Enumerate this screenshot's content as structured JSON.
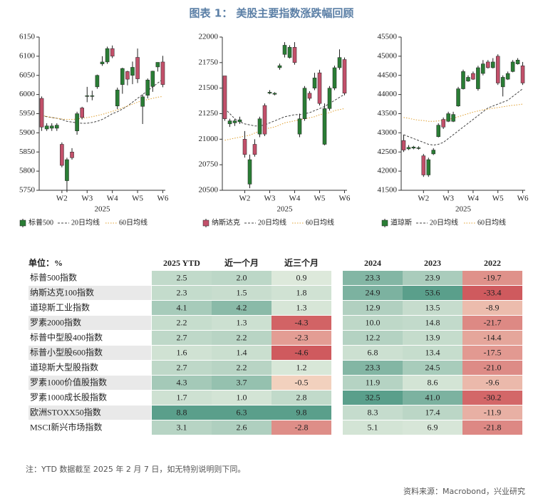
{
  "title": "图表 1： 美股主要指数涨跌幅回顾",
  "chart_data": [
    {
      "type": "candlestick",
      "xlabel": "2025",
      "categories": [
        null,
        null,
        null,
        null,
        "W2",
        null,
        null,
        null,
        null,
        "W3",
        null,
        null,
        null,
        null,
        "W4",
        null,
        null,
        null,
        null,
        "W5",
        null,
        null,
        null,
        null,
        "W6"
      ],
      "ylim": [
        5750,
        6150
      ],
      "yticks": [
        5750,
        5800,
        5850,
        5900,
        5950,
        6000,
        6050,
        6100,
        6150
      ],
      "candles": {
        "name": "标普500",
        "up_color": "#2a7d35",
        "down_color": "#c2506a",
        "legend_color": "#2a7d35",
        "open": [
          5990,
          5910,
          5912,
          5912,
          5870,
          5775,
          5850,
          5905,
          5965,
          5995,
          5995,
          6020,
          6080,
          6085,
          6120,
          5970,
          6026,
          6060,
          6050,
          6097,
          5969,
          5998,
          6021,
          6072,
          6085
        ],
        "close": [
          5915,
          5918,
          5918,
          5920,
          5815,
          5830,
          5835,
          5950,
          5940,
          5997,
          5997,
          6050,
          6085,
          6120,
          6100,
          6012,
          6068,
          6040,
          6071,
          6041,
          5994,
          6038,
          6061,
          6084,
          6026
        ],
        "high": [
          5995,
          5925,
          5925,
          5925,
          5875,
          5835,
          5860,
          5955,
          5968,
          6020,
          6010,
          6052,
          6100,
          6125,
          6128,
          6018,
          6070,
          6062,
          6086,
          6120,
          6000,
          6042,
          6062,
          6084,
          6101
        ],
        "low": [
          5905,
          5905,
          5905,
          5905,
          5810,
          5745,
          5830,
          5895,
          5935,
          5980,
          5985,
          6015,
          6075,
          6080,
          6095,
          5962,
          6002,
          6024,
          6027,
          6030,
          5923,
          5990,
          6007,
          6060,
          6019
        ]
      },
      "lines": [
        {
          "name": "20日均线",
          "color": "#444444",
          "style": "dashed",
          "values": [
            5945,
            5942,
            5940,
            5938,
            5935,
            5930,
            5928,
            5926,
            5925,
            5925,
            5927,
            5930,
            5935,
            5942,
            5950,
            5955,
            5962,
            5970,
            5980,
            5990,
            6000,
            6010,
            6020,
            6030,
            6040
          ]
        },
        {
          "name": "60日均线",
          "color": "#e0a030",
          "style": "dotted",
          "values": [
            5945,
            5943,
            5940,
            5938,
            5936,
            5935,
            5935,
            5936,
            5938,
            5940,
            5942,
            5945,
            5948,
            5952,
            5956,
            5960,
            5965,
            5970,
            5975,
            5980,
            5984,
            5987,
            5990,
            5993,
            5995
          ]
        }
      ]
    },
    {
      "type": "candlestick",
      "xlabel": "2025",
      "categories": [
        null,
        null,
        null,
        null,
        "W2",
        null,
        null,
        null,
        null,
        "W3",
        null,
        null,
        null,
        null,
        "W4",
        null,
        null,
        null,
        null,
        "W5",
        null,
        null,
        null,
        null,
        "W6"
      ],
      "ylim": [
        20500,
        22000
      ],
      "yticks": [
        20500,
        20750,
        21000,
        21250,
        21500,
        21750,
        22000
      ],
      "candles": {
        "name": "纳斯达克",
        "up_color": "#2a7d35",
        "down_color": "#c2506a",
        "legend_color": "#c2506a",
        "open": [
          21620,
          21150,
          21160,
          21170,
          21000,
          20560,
          20950,
          21050,
          21330,
          21450,
          21440,
          21700,
          21830,
          21800,
          21900,
          21050,
          21200,
          21450,
          21500,
          21650,
          20950,
          21300,
          21500,
          21700,
          21780
        ],
        "close": [
          21200,
          21180,
          21180,
          21190,
          20850,
          20800,
          20850,
          21200,
          21050,
          21460,
          21450,
          21720,
          21920,
          21900,
          21750,
          21200,
          21500,
          21400,
          21600,
          21350,
          21300,
          21500,
          21700,
          21800,
          21450
        ],
        "high": [
          21620,
          21200,
          21200,
          21220,
          21080,
          20850,
          21000,
          21220,
          21350,
          21480,
          21460,
          21740,
          21950,
          21920,
          21950,
          21250,
          21520,
          21470,
          21650,
          21680,
          21350,
          21520,
          21720,
          21880,
          21800
        ],
        "low": [
          21180,
          21120,
          21130,
          21150,
          20820,
          20520,
          20830,
          21020,
          21030,
          21440,
          21430,
          21680,
          21800,
          21790,
          21730,
          21020,
          21180,
          21380,
          21480,
          21330,
          20940,
          21280,
          21480,
          21680,
          21430
        ]
      },
      "lines": [
        {
          "name": "20日均线",
          "color": "#444444",
          "style": "dashed",
          "values": [
            21300,
            21250,
            21200,
            21170,
            21150,
            21140,
            21130,
            21130,
            21140,
            21160,
            21180,
            21200,
            21220,
            21230,
            21240,
            21240,
            21250,
            21260,
            21280,
            21300,
            21320,
            21350,
            21380,
            21410,
            21440
          ]
        },
        {
          "name": "60日均线",
          "color": "#e0a030",
          "style": "dotted",
          "values": [
            20990,
            21000,
            21010,
            21020,
            21030,
            21040,
            21060,
            21080,
            21100,
            21110,
            21120,
            21140,
            21160,
            21170,
            21180,
            21190,
            21200,
            21210,
            21220,
            21240,
            21250,
            21260,
            21280,
            21290,
            21300
          ]
        }
      ]
    },
    {
      "type": "candlestick",
      "xlabel": "2025",
      "categories": [
        null,
        null,
        null,
        null,
        "W2",
        null,
        null,
        null,
        null,
        "W3",
        null,
        null,
        null,
        null,
        "W4",
        null,
        null,
        null,
        null,
        "W5",
        null,
        null,
        null,
        null,
        "W6"
      ],
      "ylim": [
        41500,
        45500
      ],
      "yticks": [
        41500,
        42000,
        42500,
        43000,
        43500,
        44000,
        44500,
        45000,
        45500
      ],
      "candles": {
        "name": "道琼斯",
        "up_color": "#2a7d35",
        "down_color": "#c2506a",
        "legend_color": "#2a7d35",
        "open": [
          42800,
          42580,
          42600,
          42590,
          42400,
          41900,
          42450,
          42900,
          43350,
          43300,
          43300,
          43700,
          44150,
          44350,
          44550,
          44150,
          44550,
          44850,
          44700,
          45000,
          44200,
          44400,
          44600,
          44800,
          44750
        ],
        "close": [
          42550,
          42620,
          42630,
          42610,
          41900,
          42300,
          42550,
          43200,
          43150,
          43500,
          43480,
          44150,
          44600,
          44450,
          44400,
          44700,
          44800,
          44700,
          44850,
          44300,
          44450,
          44550,
          44850,
          44900,
          44300
        ],
        "high": [
          42950,
          42680,
          42660,
          42650,
          42450,
          42350,
          42600,
          43250,
          43400,
          43550,
          43550,
          44200,
          44650,
          44500,
          44600,
          44750,
          44900,
          44900,
          44950,
          45050,
          44500,
          44600,
          44900,
          44950,
          44850
        ],
        "low": [
          42500,
          42550,
          42570,
          42560,
          41850,
          41850,
          42420,
          42880,
          43100,
          43280,
          43280,
          43680,
          44130,
          44330,
          44380,
          44100,
          44500,
          44680,
          44680,
          44250,
          43950,
          44380,
          44580,
          44780,
          44250
        ]
      },
      "lines": [
        {
          "name": "20日均线",
          "color": "#444444",
          "style": "dashed",
          "values": [
            42950,
            42900,
            42850,
            42800,
            42750,
            42700,
            42680,
            42700,
            42750,
            42850,
            42950,
            43050,
            43150,
            43250,
            43350,
            43450,
            43550,
            43650,
            43700,
            43750,
            43800,
            43850,
            43950,
            44050,
            44150
          ]
        },
        {
          "name": "60日均线",
          "color": "#e0a030",
          "style": "dotted",
          "values": [
            43400,
            43380,
            43350,
            43330,
            43320,
            43300,
            43300,
            43310,
            43330,
            43350,
            43380,
            43420,
            43460,
            43500,
            43540,
            43570,
            43600,
            43620,
            43640,
            43660,
            43680,
            43700,
            43720,
            43730,
            43750
          ]
        }
      ]
    }
  ],
  "table": {
    "header": [
      "单位：%",
      "2025 YTD",
      "近一个月",
      "近三个月",
      "2024",
      "2023",
      "2022"
    ],
    "rows": [
      {
        "label": "标普500指数",
        "values": [
          "2.5",
          "2.0",
          "0.9",
          "23.3",
          "23.9",
          "-19.7"
        ]
      },
      {
        "label": "纳斯达克100指数",
        "values": [
          "2.3",
          "1.5",
          "1.8",
          "24.9",
          "53.6",
          "-33.4"
        ]
      },
      {
        "label": "道琼斯工业指数",
        "values": [
          "4.1",
          "4.2",
          "1.3",
          "12.9",
          "13.5",
          "-8.9"
        ]
      },
      {
        "label": "罗素2000指数",
        "values": [
          "2.2",
          "1.3",
          "-4.3",
          "10.0",
          "14.8",
          "-21.7"
        ]
      },
      {
        "label": "标普中型股400指数",
        "values": [
          "2.7",
          "2.2",
          "-2.3",
          "12.2",
          "13.9",
          "-14.4"
        ]
      },
      {
        "label": "标普小型股600指数",
        "values": [
          "1.6",
          "1.4",
          "-4.6",
          "6.8",
          "13.4",
          "-17.5"
        ]
      },
      {
        "label": "道琼斯大型股指数",
        "values": [
          "2.7",
          "2.2",
          "1.2",
          "23.3",
          "24.5",
          "-21.0"
        ]
      },
      {
        "label": "罗素1000价值股指数",
        "values": [
          "4.3",
          "3.7",
          "-0.5",
          "11.9",
          "8.6",
          "-9.6"
        ]
      },
      {
        "label": "罗素1000成长股指数",
        "values": [
          "1.7",
          "1.0",
          "2.8",
          "32.5",
          "41.0",
          "-30.2"
        ]
      },
      {
        "label": "欧洲STOXX50指数",
        "values": [
          "8.8",
          "6.3",
          "9.8",
          "8.3",
          "17.4",
          "-11.9"
        ]
      },
      {
        "label": "MSCI新兴市场指数",
        "values": [
          "3.1",
          "2.6",
          "-2.8",
          "5.1",
          "6.9",
          "-21.8"
        ]
      }
    ]
  },
  "note": "注：YTD 数据截至 2025 年 2 月 7 日，如无特别说明则下同。",
  "source": "资料来源：Macrobond，兴业研究"
}
